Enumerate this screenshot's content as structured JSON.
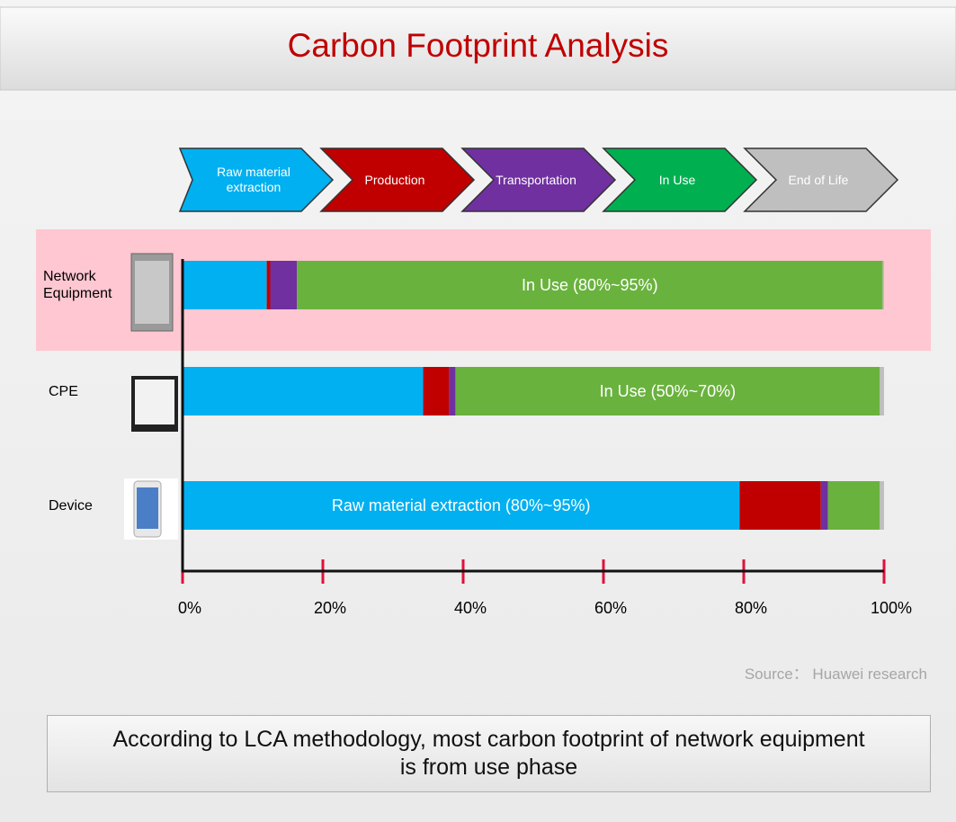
{
  "chart_data": {
    "type": "stacked-bar-horizontal",
    "title": "Carbon Footprint Analysis",
    "categories": [
      "Network Equipment",
      "CPE",
      "Device"
    ],
    "series": [
      {
        "name": "Raw material extraction",
        "color": "#00b0f0",
        "legend_color": "#00b0f0",
        "values": [
          12,
          34.3,
          79.4
        ]
      },
      {
        "name": "Production",
        "color": "#c00000",
        "legend_color": "#c00000",
        "values": [
          0.5,
          3.7,
          11.6
        ]
      },
      {
        "name": "Transportation",
        "color": "#7030a0",
        "legend_color": "#7030a0",
        "values": [
          3.8,
          0.9,
          1.0
        ]
      },
      {
        "name": "In Use",
        "color": "#6ab23e",
        "legend_color": "#00b050",
        "values": [
          83.5,
          60.5,
          7.4
        ]
      },
      {
        "name": "End of Life",
        "color": "#bfbfbf",
        "legend_color": "#bfbfbf",
        "values": [
          0.2,
          0.6,
          0.6
        ]
      }
    ],
    "annotations": [
      "In  Use (80%~95%)",
      "In  Use (50%~70%)",
      "Raw material extraction (80%~95%)"
    ],
    "xlim": [
      0,
      100
    ],
    "xticks": [
      {
        "value": 0,
        "label": "0%"
      },
      {
        "value": 20,
        "label": "20%"
      },
      {
        "value": 40,
        "label": "40%"
      },
      {
        "value": 60,
        "label": "60%"
      },
      {
        "value": 80,
        "label": "80%"
      },
      {
        "value": 100,
        "label": "100%"
      }
    ],
    "source": "Source： Huawei research",
    "note": "According to LCA methodology, most carbon footprint of network equipment is from use phase"
  }
}
